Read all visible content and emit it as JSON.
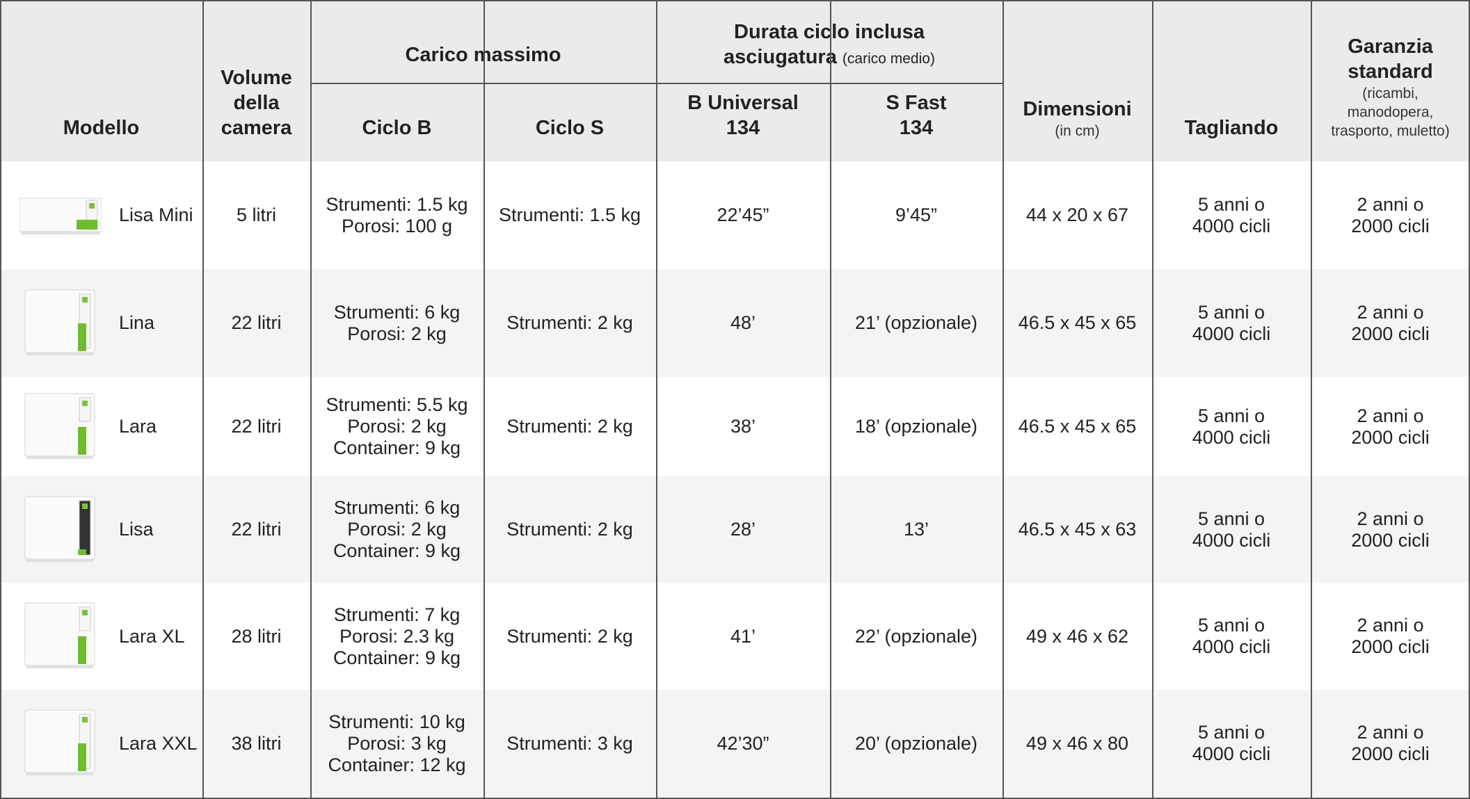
{
  "header": {
    "modello": "Modello",
    "volume": [
      "Volume",
      "della",
      "camera"
    ],
    "carico": "Carico massimo",
    "ciclo_b": "Ciclo B",
    "ciclo_s": "Ciclo S",
    "durata": [
      "Durata ciclo inclusa",
      "asciugatura"
    ],
    "durata_note": "(carico medio)",
    "b_universal": [
      "B Universal",
      "134"
    ],
    "s_fast": [
      "S Fast",
      "134"
    ],
    "dimensioni": "Dimensioni",
    "dimensioni_note": "(in cm)",
    "tagliando": "Tagliando",
    "garanzia": [
      "Garanzia",
      "standard"
    ],
    "garanzia_note": [
      "(ricambi,",
      "manodopera,",
      "trasporto, muletto)"
    ]
  },
  "rows": [
    {
      "model": "Lisa Mini",
      "volume": "5 litri",
      "ciclo_b": [
        "Strumenti: 1.5 kg",
        "Porosi: 100 g"
      ],
      "ciclo_s": "Strumenti: 1.5 kg",
      "b_universal": "22’45”",
      "s_fast": "9’45”",
      "dimensioni": "44 x 20 x 67",
      "tagliando": [
        "5 anni o",
        "4000 cicli"
      ],
      "garanzia": [
        "2 anni o",
        "2000 cicli"
      ]
    },
    {
      "model": "Lina",
      "volume": "22 litri",
      "ciclo_b": [
        "Strumenti: 6 kg",
        "Porosi: 2 kg"
      ],
      "ciclo_s": "Strumenti: 2 kg",
      "b_universal": "48’",
      "s_fast": "21’ (opzionale)",
      "dimensioni": "46.5 x 45 x 65",
      "tagliando": [
        "5 anni o",
        "4000 cicli"
      ],
      "garanzia": [
        "2 anni o",
        "2000 cicli"
      ]
    },
    {
      "model": "Lara",
      "volume": "22 litri",
      "ciclo_b": [
        "Strumenti: 5.5 kg",
        "Porosi: 2 kg",
        "Container: 9 kg"
      ],
      "ciclo_s": "Strumenti: 2 kg",
      "b_universal": "38’",
      "s_fast": "18’ (opzionale)",
      "dimensioni": "46.5 x 45 x 65",
      "tagliando": [
        "5 anni o",
        "4000 cicli"
      ],
      "garanzia": [
        "2 anni o",
        "2000 cicli"
      ]
    },
    {
      "model": "Lisa",
      "volume": "22 litri",
      "ciclo_b": [
        "Strumenti: 6 kg",
        "Porosi: 2 kg",
        "Container: 9 kg"
      ],
      "ciclo_s": "Strumenti: 2 kg",
      "b_universal": "28’",
      "s_fast": "13’",
      "dimensioni": "46.5 x 45 x 63",
      "tagliando": [
        "5 anni o",
        "4000 cicli"
      ],
      "garanzia": [
        "2 anni o",
        "2000 cicli"
      ]
    },
    {
      "model": "Lara XL",
      "volume": "28 litri",
      "ciclo_b": [
        "Strumenti: 7 kg",
        "Porosi: 2.3 kg",
        "Container: 9 kg"
      ],
      "ciclo_s": "Strumenti: 2 kg",
      "b_universal": "41’",
      "s_fast": "22’ (opzionale)",
      "dimensioni": "49 x 46 x 62",
      "tagliando": [
        "5 anni o",
        "4000 cicli"
      ],
      "garanzia": [
        "2 anni o",
        "2000 cicli"
      ]
    },
    {
      "model": "Lara XXL",
      "volume": "38 litri",
      "ciclo_b": [
        "Strumenti: 10 kg",
        "Porosi: 3 kg",
        "Container: 12 kg"
      ],
      "ciclo_s": "Strumenti: 3 kg",
      "b_universal": "42’30”",
      "s_fast": "20’ (opzionale)",
      "dimensioni": "49 x 46 x 80",
      "tagliando": [
        "5 anni o",
        "4000 cicli"
      ],
      "garanzia": [
        "2 anni o",
        "2000 cicli"
      ]
    }
  ]
}
